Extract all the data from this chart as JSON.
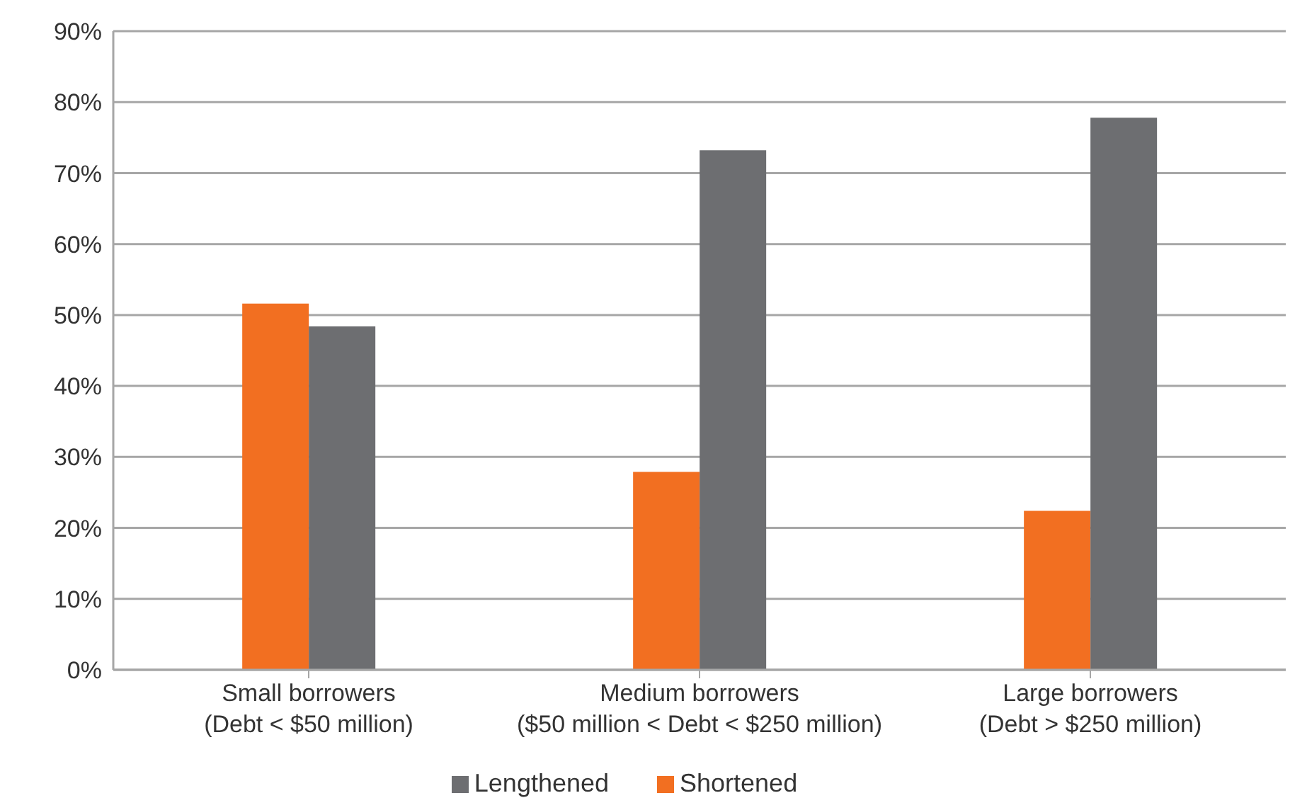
{
  "chart_data": {
    "type": "bar",
    "categories": [
      "Small borrowers\n(Debt < $50 million)",
      "Medium borrowers\n($50 million < Debt < $250 million)",
      "Large borrowers\n(Debt > $250 million)"
    ],
    "series": [
      {
        "name": "Shortened",
        "color": "#f26f21",
        "values": [
          51.6,
          27.9,
          22.4
        ]
      },
      {
        "name": "Lengthened",
        "color": "#6d6e71",
        "values": [
          48.4,
          73.2,
          77.8
        ]
      }
    ],
    "ylim": [
      0,
      90
    ],
    "yticks": [
      {
        "value": 0,
        "label": "0%"
      },
      {
        "value": 10,
        "label": "10%"
      },
      {
        "value": 20,
        "label": "20%"
      },
      {
        "value": 30,
        "label": "30%"
      },
      {
        "value": 40,
        "label": "40%"
      },
      {
        "value": 50,
        "label": "50%"
      },
      {
        "value": 60,
        "label": "60%"
      },
      {
        "value": 70,
        "label": "70%"
      },
      {
        "value": 80,
        "label": "80%"
      },
      {
        "value": 90,
        "label": "90%"
      }
    ],
    "grid": "y",
    "legend": "bottom"
  }
}
